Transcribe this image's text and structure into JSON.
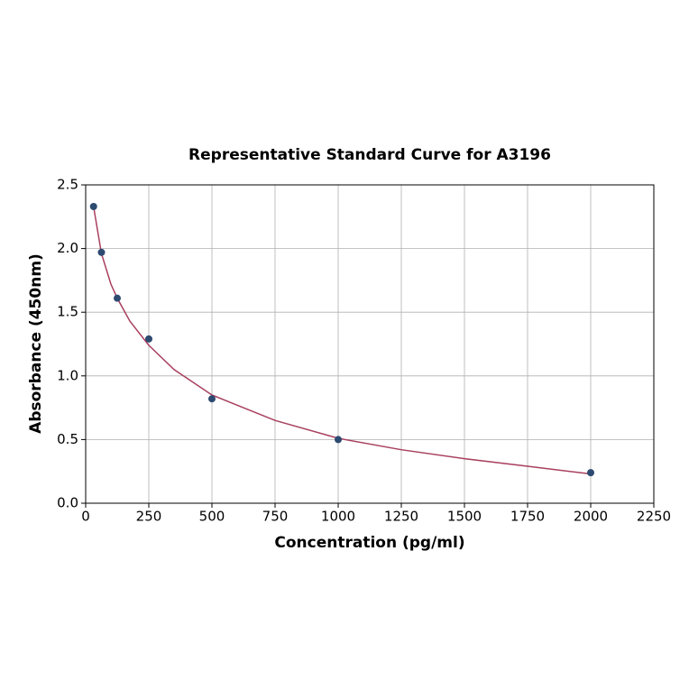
{
  "chart_data": {
    "type": "scatter",
    "title": "Representative Standard Curve for A3196",
    "xlabel": "Concentration (pg/ml)",
    "ylabel": "Absorbance (450nm)",
    "xlim": [
      0,
      2250
    ],
    "xticks": [
      0,
      250,
      500,
      750,
      1000,
      1250,
      1500,
      1750,
      2000,
      2250
    ],
    "ylim": [
      0,
      2.5
    ],
    "yticks": [
      {
        "value": 0,
        "label": "0.0"
      },
      0.5,
      {
        "value": 1,
        "label": "1.0"
      },
      1.5,
      {
        "value": 2,
        "label": "2.0"
      },
      2.5
    ],
    "grid": true,
    "series": [
      {
        "mode": "line",
        "color": "#a8405e",
        "x": [
          31.25,
          62.5,
          100,
          125,
          175,
          250,
          350,
          500,
          750,
          1000,
          1250,
          1500,
          1750,
          2000
        ],
        "values": [
          2.33,
          1.96,
          1.72,
          1.61,
          1.43,
          1.24,
          1.05,
          0.85,
          0.65,
          0.51,
          0.42,
          0.35,
          0.29,
          0.23
        ]
      },
      {
        "mode": "markers",
        "color": "#2d4a70",
        "x": [
          31.25,
          62.5,
          125,
          250,
          500,
          1000,
          2000
        ],
        "values": [
          2.33,
          1.97,
          1.61,
          1.29,
          0.82,
          0.5,
          0.24
        ]
      }
    ]
  }
}
